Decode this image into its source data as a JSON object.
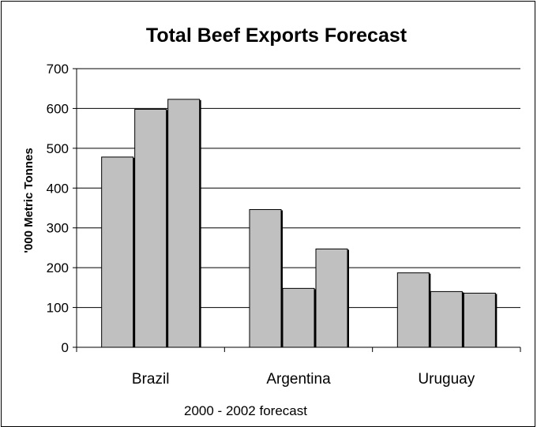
{
  "chart_data": {
    "type": "bar",
    "title": "Total Beef Exports Forecast",
    "xlabel": "2000 - 2002 forecast",
    "ylabel": "'000 Metric Tonnes",
    "categories": [
      "Brazil",
      "Argentina",
      "Uruguay"
    ],
    "series": [
      {
        "values": [
          478,
          346,
          187
        ]
      },
      {
        "values": [
          598,
          148,
          140
        ]
      },
      {
        "values": [
          623,
          247,
          136
        ]
      }
    ],
    "ylim": [
      0,
      700
    ],
    "yticks": [
      "0",
      "100",
      "200",
      "300",
      "400",
      "500",
      "600",
      "700"
    ],
    "grid": true,
    "legend": "none",
    "colors": {
      "bar_fill": "#c0c0c0",
      "bar_stroke": "#000000",
      "grid": "#000000",
      "background": "#ffffff"
    }
  }
}
